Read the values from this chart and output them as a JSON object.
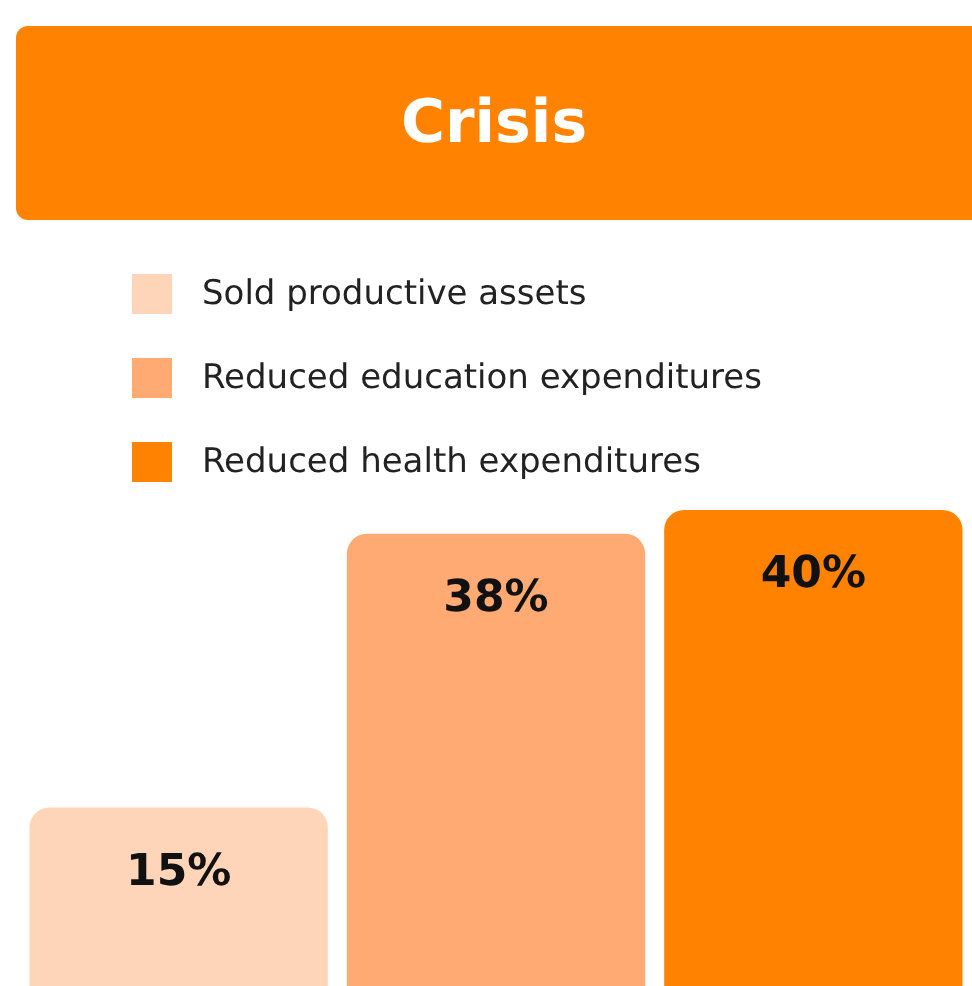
{
  "chart_data": {
    "type": "bar",
    "title": "Crisis",
    "categories": [
      null
    ],
    "series": [
      {
        "name": "Sold productive assets",
        "color": "#ffd5ba",
        "values": [
          15
        ],
        "value_labels": [
          "15%"
        ]
      },
      {
        "name": "Reduced education expenditures",
        "color": "#ffaa72",
        "values": [
          38
        ],
        "value_labels": [
          "38%"
        ]
      },
      {
        "name": "Reduced health expenditures",
        "color": "#ff8200",
        "values": [
          40
        ],
        "value_labels": [
          "40%"
        ]
      }
    ],
    "legend": "top"
  }
}
